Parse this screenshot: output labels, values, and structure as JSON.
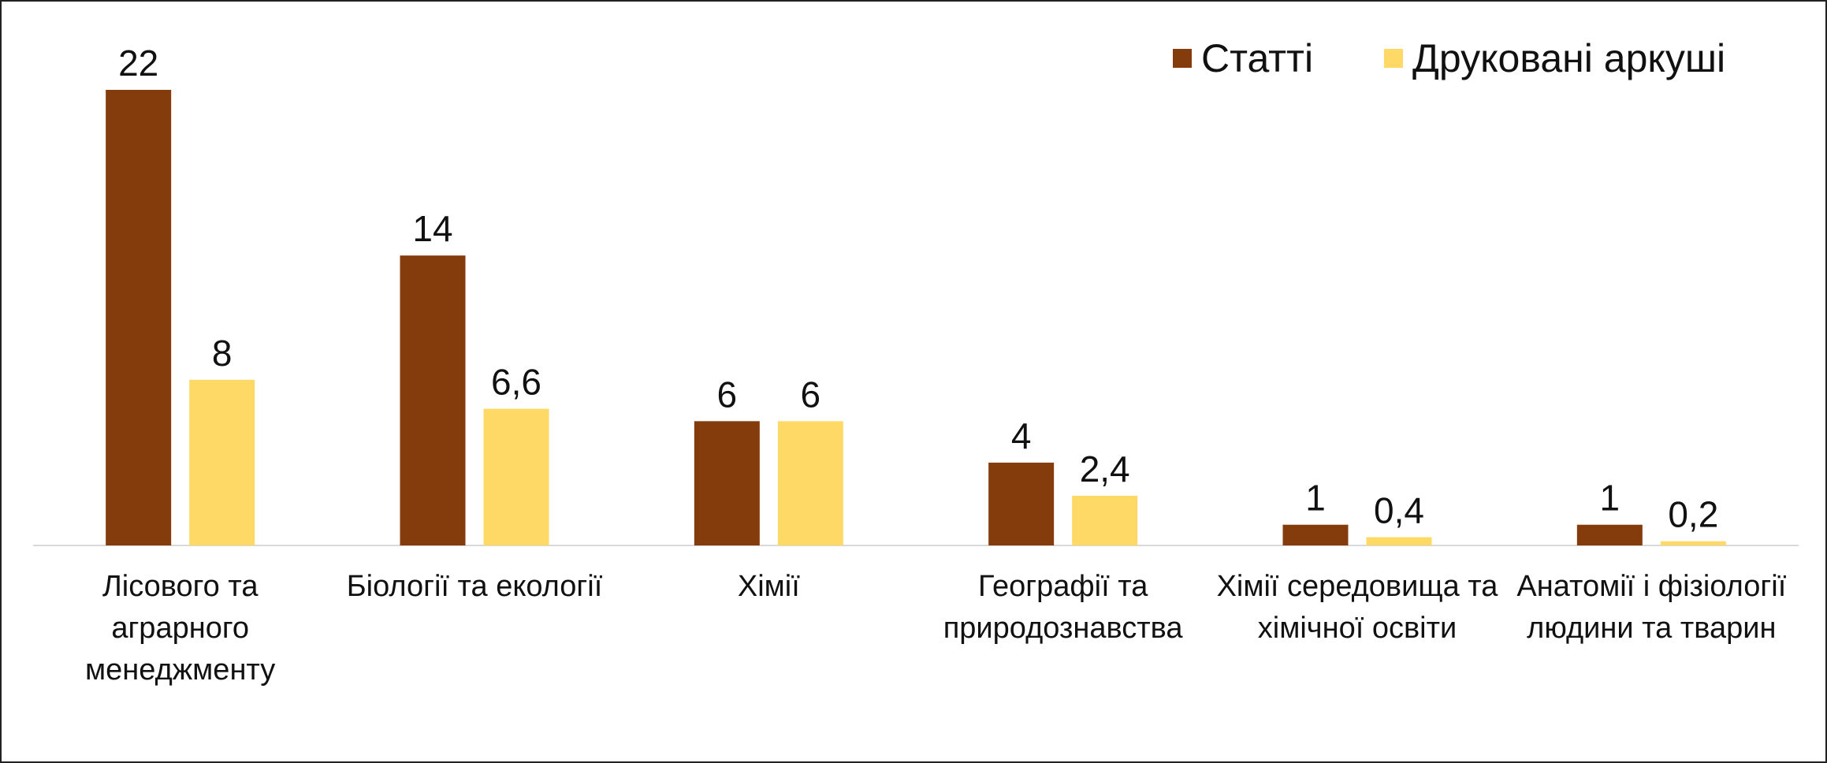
{
  "chart_data": {
    "type": "bar",
    "categories": [
      "Лісового та аграрного менеджменту",
      "Біології та екології",
      "Хімії",
      "Географії та природознавства",
      "Хімії середовища та хімічної освіти",
      "Анатомії і фізіології людини та тварин"
    ],
    "series": [
      {
        "name": "Статті",
        "color": "#843C0C",
        "values": [
          22,
          14,
          6,
          4,
          1,
          1
        ],
        "value_labels": [
          "22",
          "14",
          "6",
          "4",
          "1",
          "1"
        ]
      },
      {
        "name": "Друковані аркуші",
        "color": "#FFD966",
        "values": [
          8,
          6.6,
          6,
          2.4,
          0.4,
          0.2
        ],
        "value_labels": [
          "8",
          "6,6",
          "6",
          "2,4",
          "0,4",
          "0,2"
        ]
      }
    ],
    "legend": "top-right"
  }
}
